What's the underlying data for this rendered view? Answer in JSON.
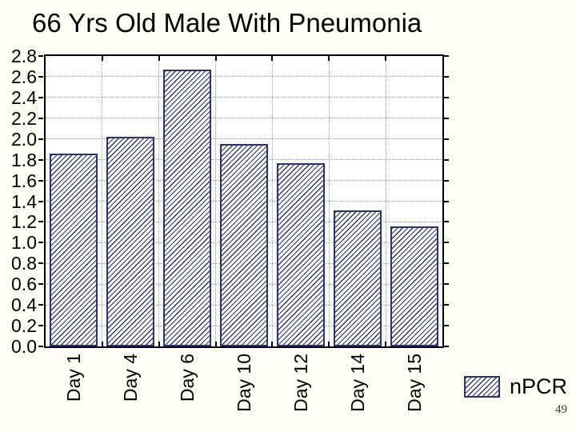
{
  "slide": {
    "title": "66 Yrs Old Male With Pneumonia",
    "page_number": "49"
  },
  "chart_data": {
    "type": "bar",
    "title": "66 Yrs Old Male With Pneumonia",
    "categories": [
      "Day 1",
      "Day 4",
      "Day 6",
      "Day 10",
      "Day 12",
      "Day 14",
      "Day 15"
    ],
    "series": [
      {
        "name": "nPCR",
        "values": [
          1.86,
          2.02,
          2.67,
          1.95,
          1.77,
          1.31,
          1.16
        ]
      }
    ],
    "xlabel": "",
    "ylabel": "",
    "ylim": [
      0.0,
      2.8
    ],
    "ytick_step": 0.2,
    "yticks": [
      "0.0",
      "0.2",
      "0.4",
      "0.6",
      "0.8",
      "1.0",
      "1.2",
      "1.4",
      "1.6",
      "1.8",
      "2.0",
      "2.2",
      "2.4",
      "2.6",
      "2.8"
    ],
    "grid": true,
    "bar_style": "diagonal-hatch",
    "legend": {
      "position": "bottom-right",
      "entries": [
        "nPCR"
      ]
    },
    "colors": {
      "slide_background": "#FFFEF5",
      "plot_background": "#FFFFFF",
      "bar_hatch": "#2B3468",
      "bar_border": "#2B3468",
      "gridline": "#9A9A9A",
      "axis": "#000000",
      "text": "#000000",
      "page_number": "#3A3A3A"
    }
  }
}
